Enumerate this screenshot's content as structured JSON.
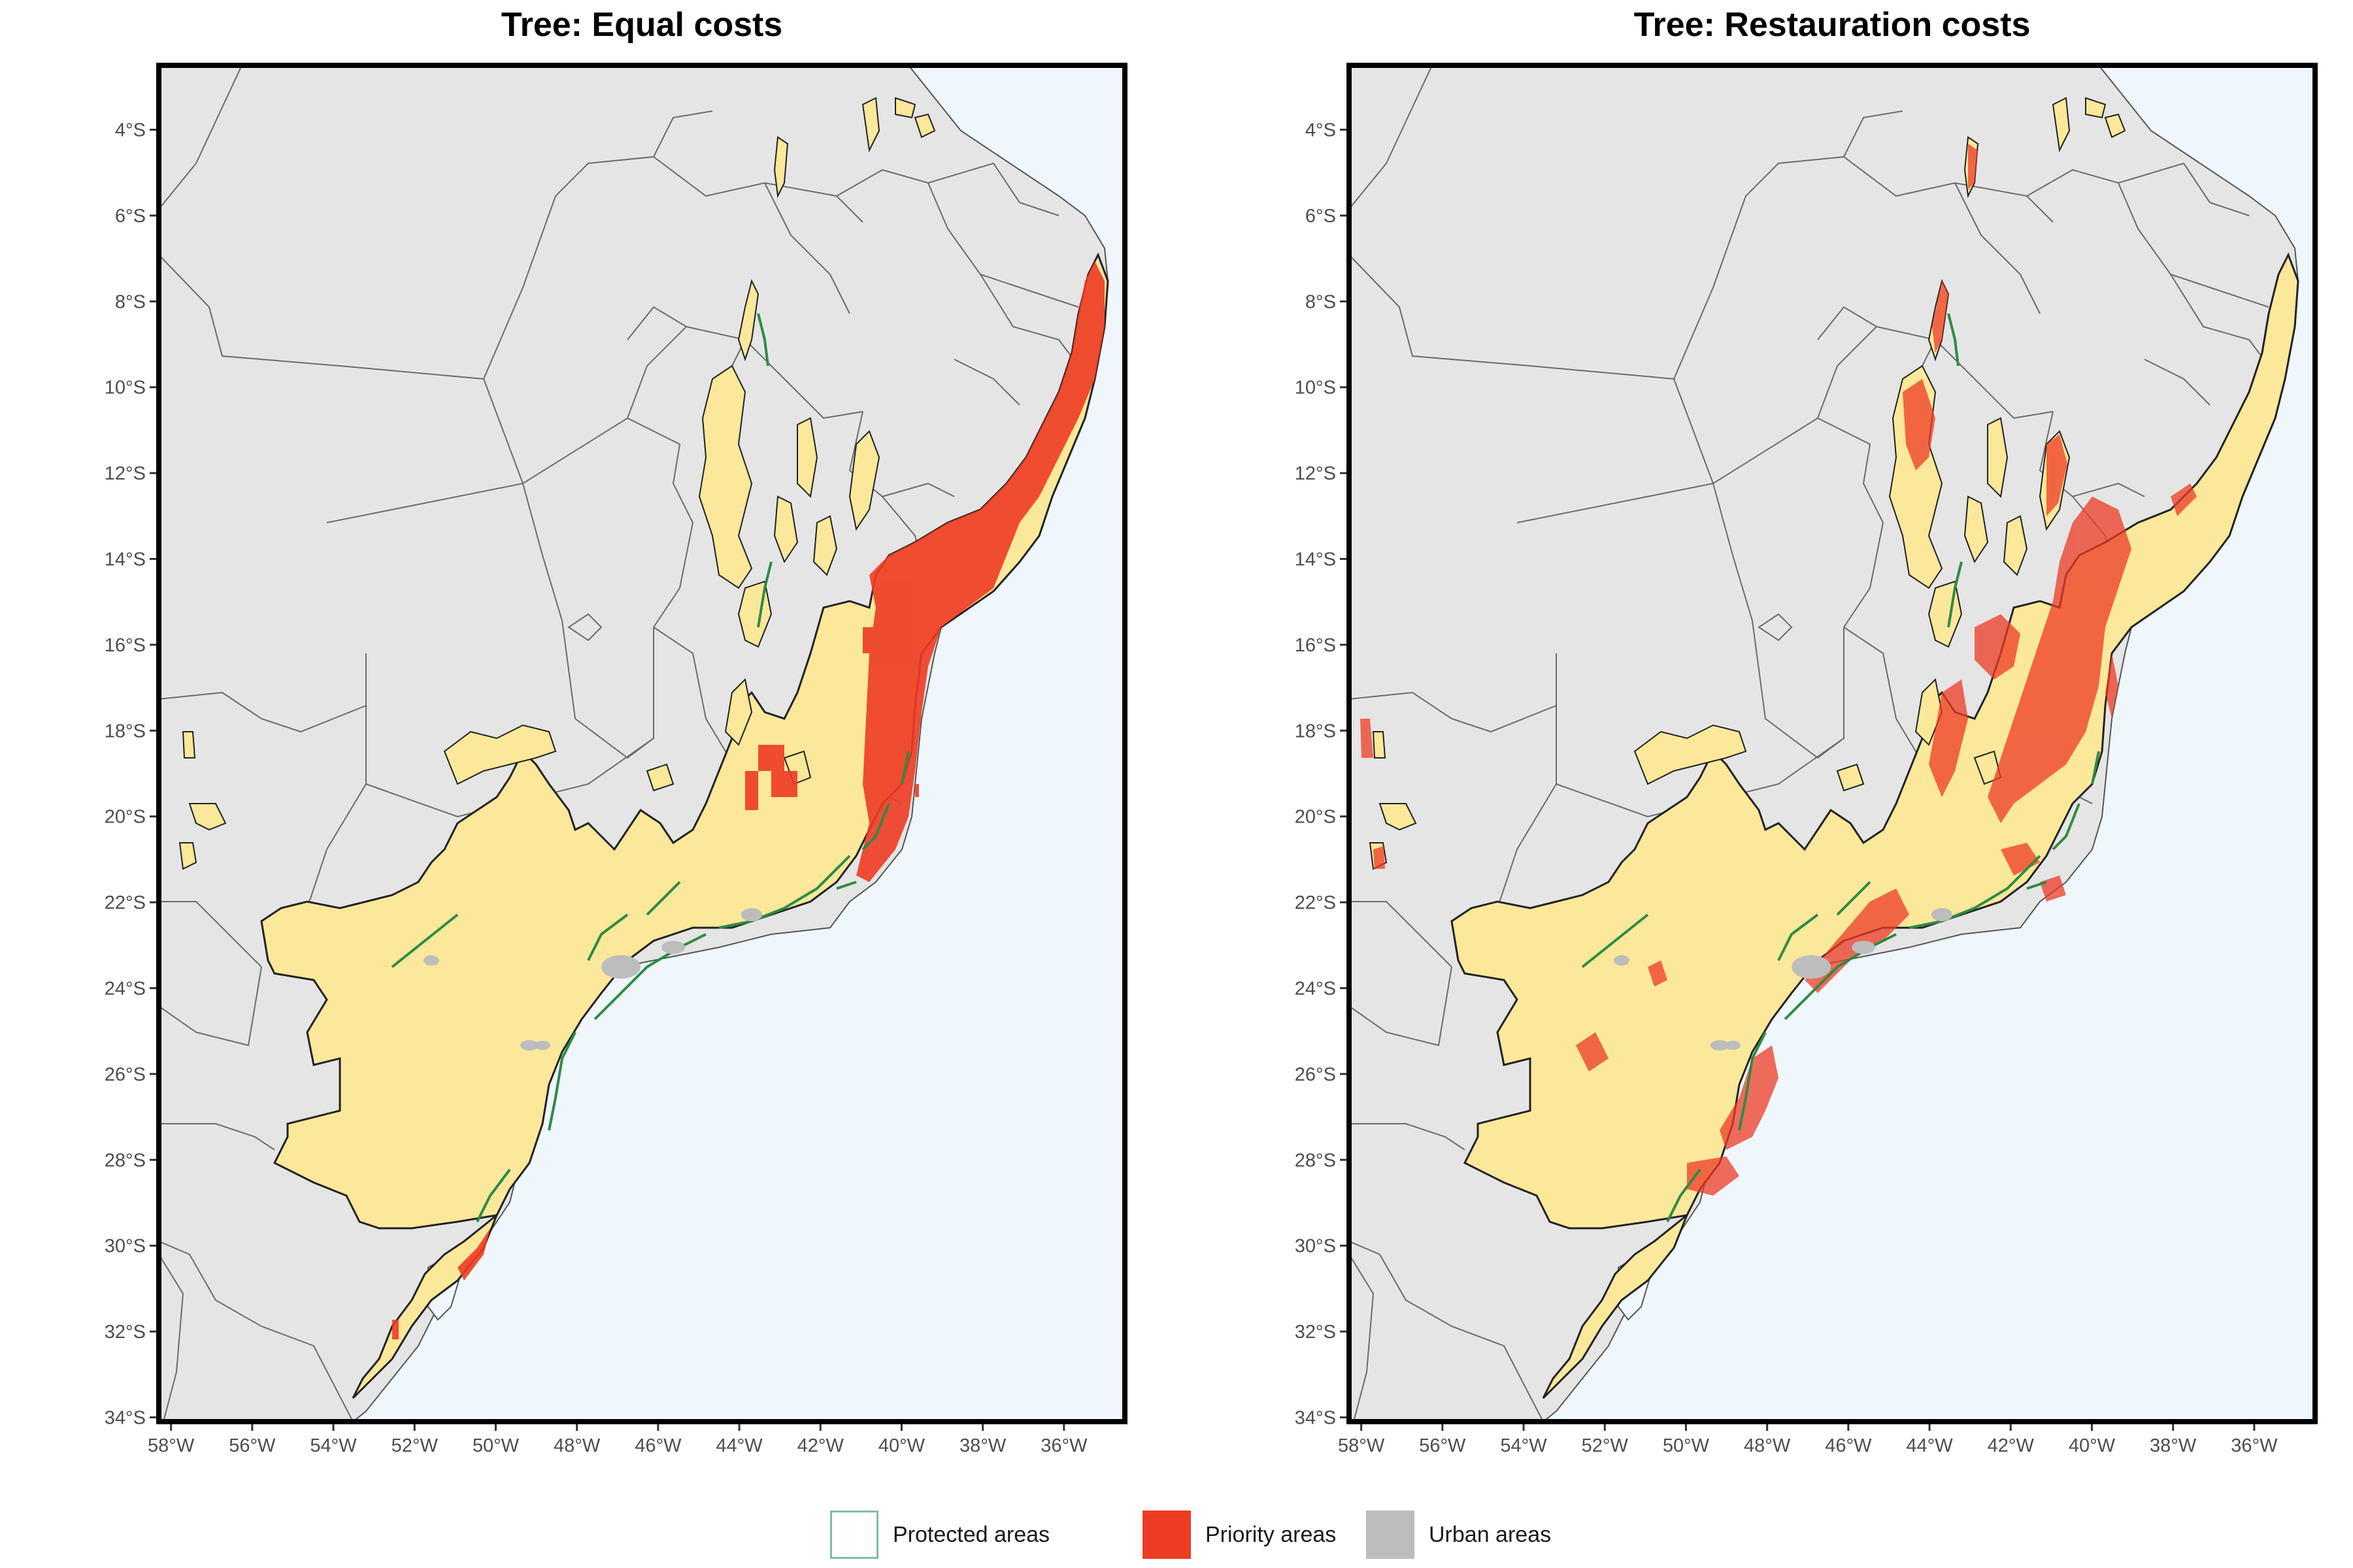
{
  "panels": [
    {
      "title": "Tree: Equal costs"
    },
    {
      "title": "Tree: Restauration costs"
    }
  ],
  "axes": {
    "lon_ticks": [
      "58°W",
      "56°W",
      "54°W",
      "52°W",
      "50°W",
      "48°W",
      "46°W",
      "44°W",
      "42°W",
      "40°W",
      "38°W",
      "36°W"
    ],
    "lat_ticks": [
      "4°S",
      "6°S",
      "8°S",
      "10°S",
      "12°S",
      "14°S",
      "16°S",
      "18°S",
      "20°S",
      "22°S",
      "24°S",
      "26°S",
      "28°S",
      "30°S",
      "32°S",
      "34°S"
    ],
    "lon_range": [
      -58.3,
      -34.5
    ],
    "lat_range": [
      -34.1,
      -2.5
    ]
  },
  "legend": [
    {
      "label": "Protected areas",
      "color": "#ffffff",
      "border": "#7fbf9f"
    },
    {
      "label": "Priority areas",
      "color": "#ee3b24",
      "border": "#ee3b24"
    },
    {
      "label": "Urban areas",
      "color": "#bdbdbd",
      "border": "#bdbdbd"
    }
  ],
  "colors": {
    "ocean": "#eff7fd",
    "land": "#e5e5e5",
    "biome": "#fbe89a",
    "priority": "#ee3b24",
    "priority_soft": "#f08a5a",
    "protected": "#2e8b45",
    "urban": "#bdbdbd",
    "state_border": "#6b6b6b",
    "frame": "#000000"
  }
}
